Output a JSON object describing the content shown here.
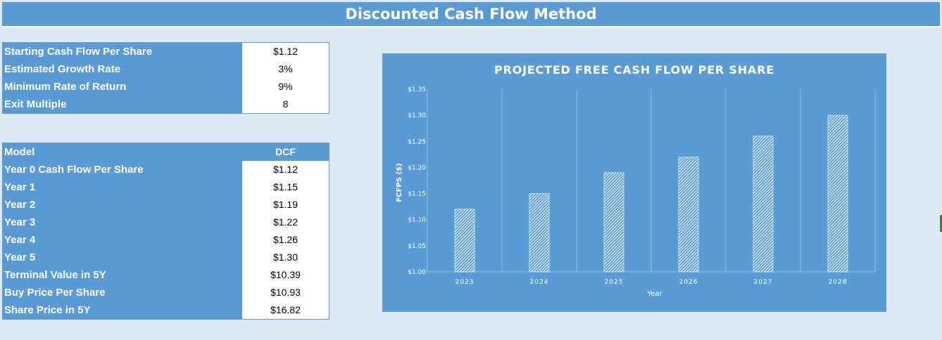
{
  "sheet": {
    "title": "Discounted Cash Flow Method"
  },
  "inputs": [
    {
      "label": "Starting Cash Flow Per Share",
      "value": "$1.12"
    },
    {
      "label": "Estimated Growth Rate",
      "value": "3%"
    },
    {
      "label": "Minimum Rate of Return",
      "value": "9%"
    },
    {
      "label": "Exit Multiple",
      "value": "8"
    }
  ],
  "model": {
    "header": {
      "label": "Model",
      "value": "DCF"
    },
    "rows": [
      {
        "label": "Year 0 Cash Flow Per Share",
        "value": "$1.12"
      },
      {
        "label": "Year 1",
        "value": "$1.15"
      },
      {
        "label": "Year 2",
        "value": "$1.19"
      },
      {
        "label": "Year 3",
        "value": "$1.22"
      },
      {
        "label": "Year 4",
        "value": "$1.26"
      },
      {
        "label": "Year 5",
        "value": "$1.30"
      },
      {
        "label": "Terminal Value in 5Y",
        "value": "$10.39"
      },
      {
        "label": "Buy Price Per Share",
        "value": "$10.93"
      },
      {
        "label": "Share Price in 5Y",
        "value": "$16.82"
      }
    ]
  },
  "colors": {
    "accent": "#5b9bd5",
    "sheet_bg": "#dde9f5",
    "bar_fill": "#ffffff"
  },
  "chart_data": {
    "type": "bar",
    "title": "PROJECTED FREE CASH FLOW PER SHARE",
    "xlabel": "Year",
    "ylabel": "FCFPS ($)",
    "categories": [
      "2023",
      "2024",
      "2025",
      "2026",
      "2027",
      "2028"
    ],
    "values": [
      1.12,
      1.15,
      1.19,
      1.22,
      1.26,
      1.3
    ],
    "ylim": [
      1.0,
      1.35
    ],
    "yticks": [
      "$1.00",
      "$1.05",
      "$1.10",
      "$1.15",
      "$1.20",
      "$1.25",
      "$1.30",
      "$1.35"
    ],
    "ytick_values": [
      1.0,
      1.05,
      1.1,
      1.15,
      1.2,
      1.25,
      1.3,
      1.35
    ],
    "bar_pattern": "diagonal-hatch",
    "grid": "vertical",
    "legend": "none"
  }
}
